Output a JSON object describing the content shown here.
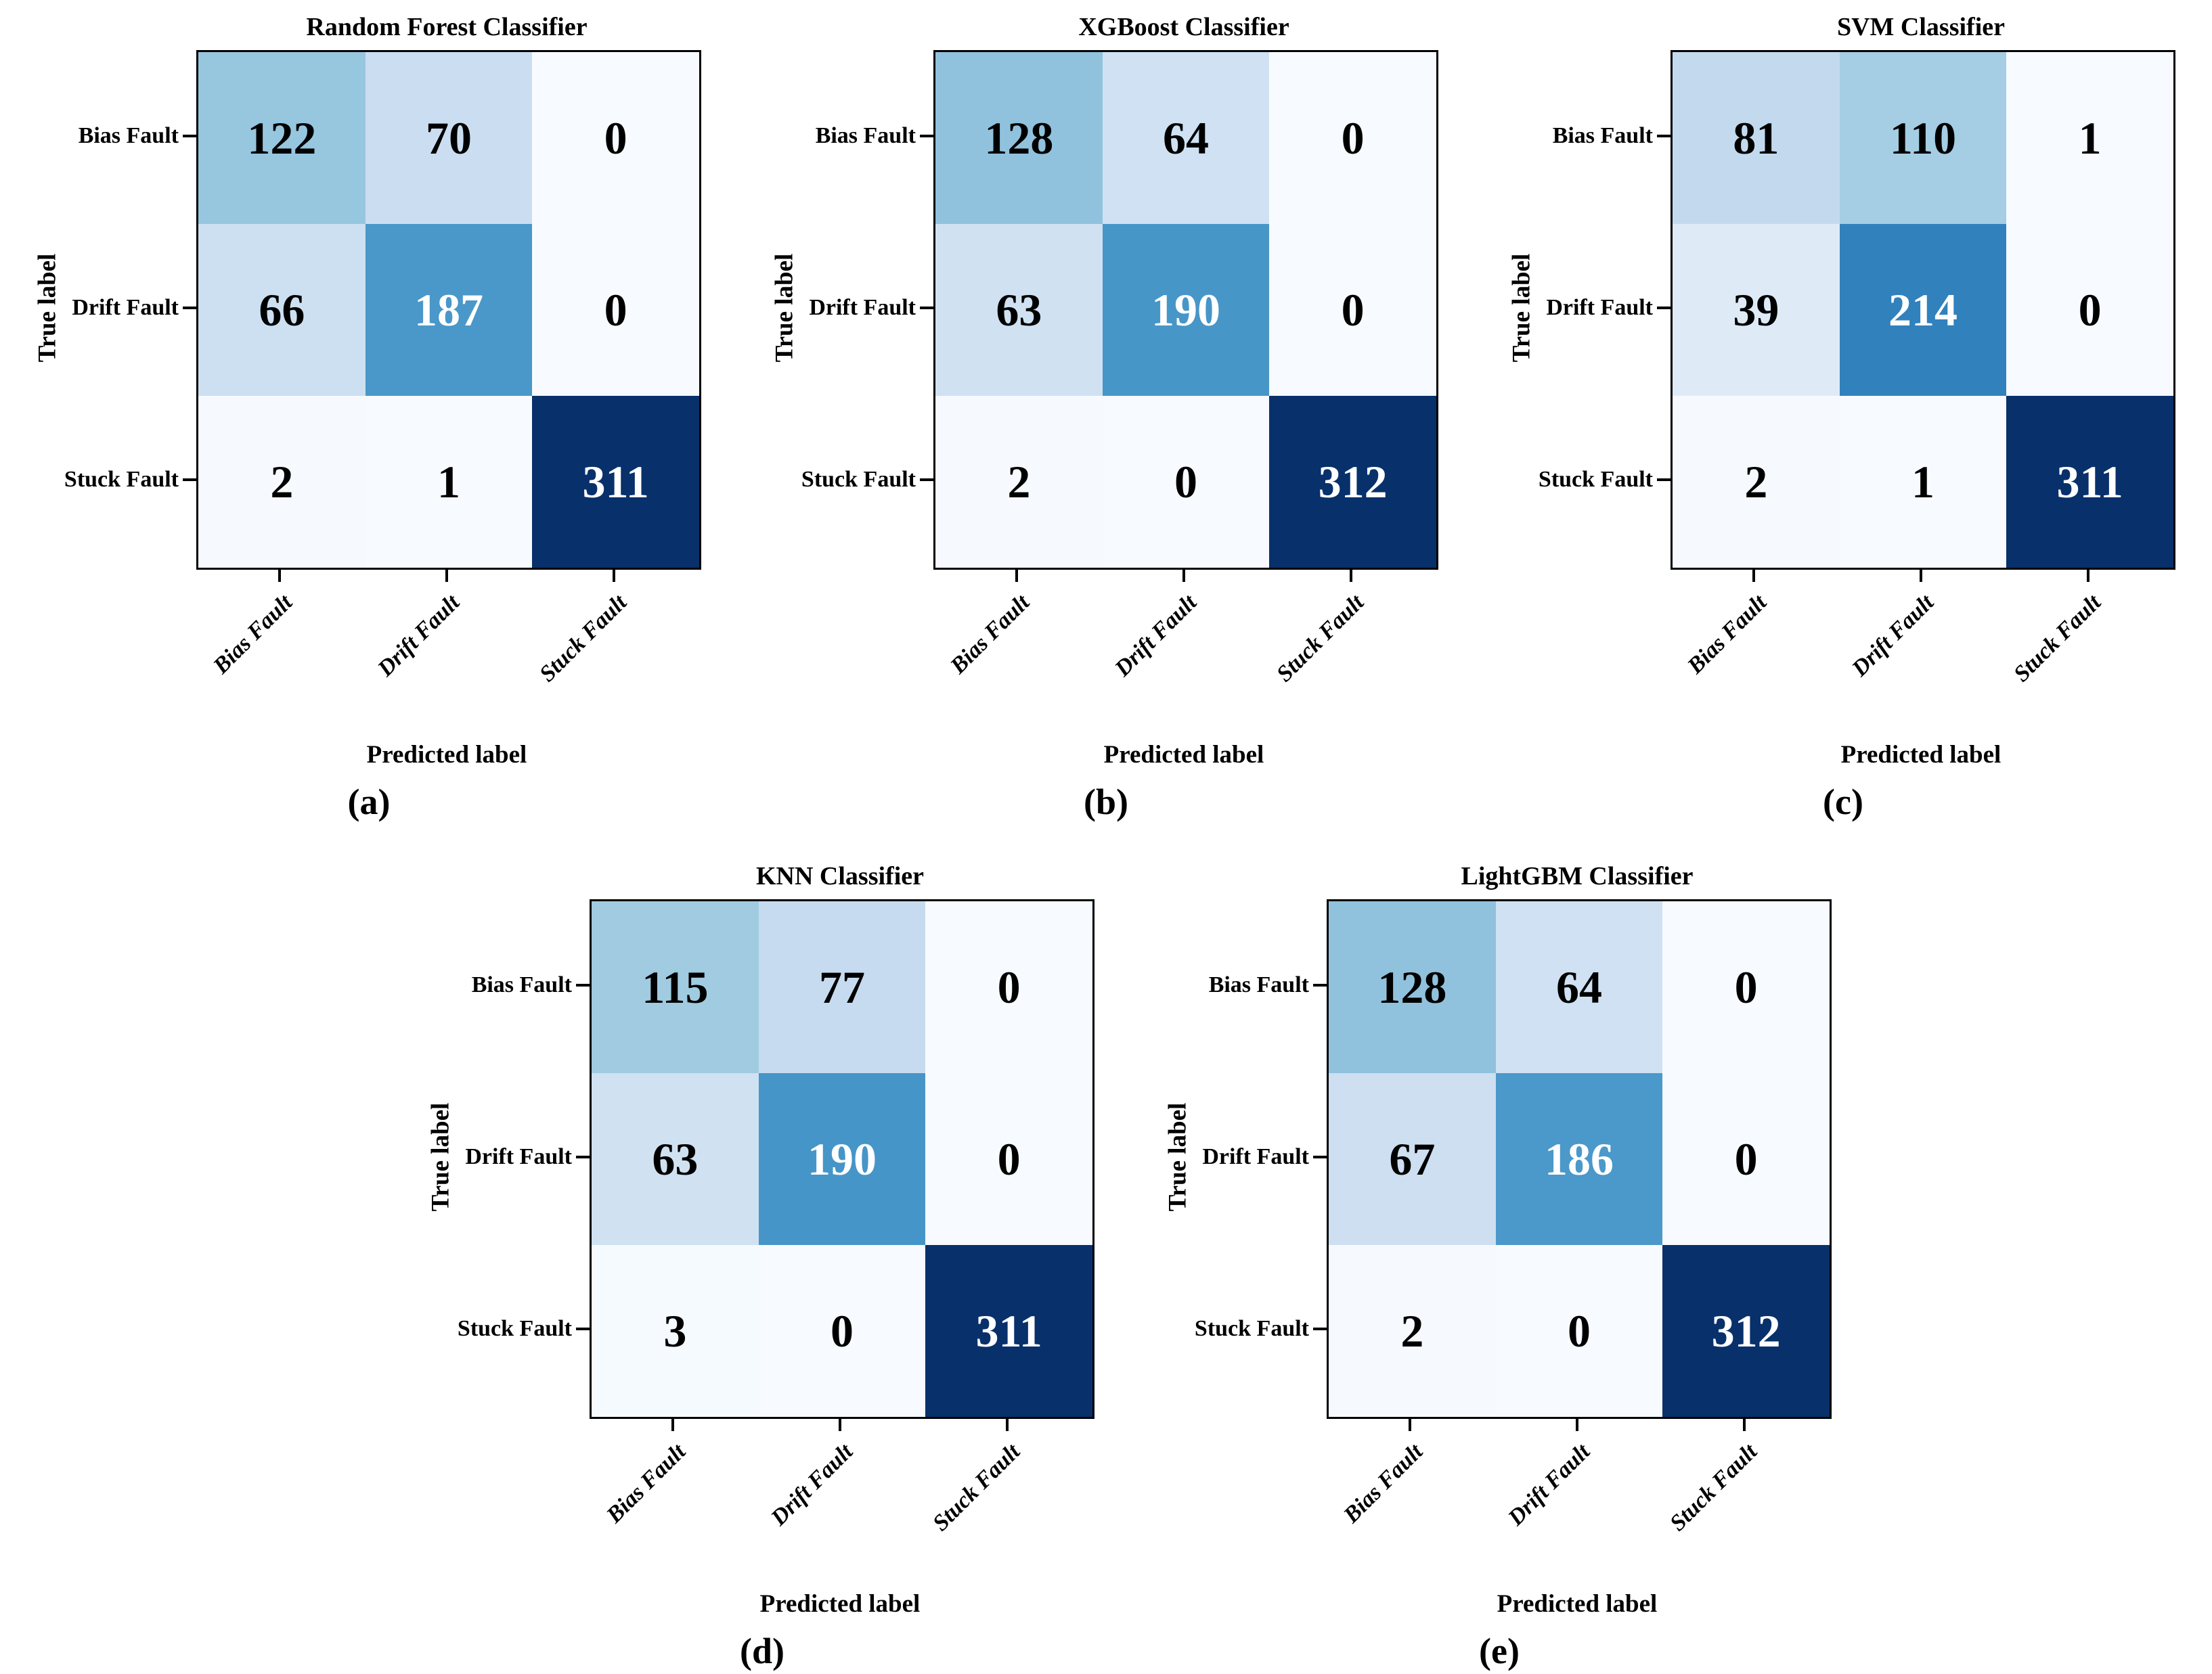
{
  "page": {
    "background": "#ffffff",
    "text_color": "#000000"
  },
  "chart_data": [
    {
      "type": "heatmap",
      "title": "Random Forest Classifier",
      "caption": "(a)",
      "xlabel": "Predicted label",
      "ylabel": "True label",
      "x_categories": [
        "Bias Fault",
        "Drift Fault",
        "Stuck Fault"
      ],
      "y_categories": [
        "Bias Fault",
        "Drift Fault",
        "Stuck Fault"
      ],
      "matrix": [
        [
          122,
          70,
          0
        ],
        [
          66,
          187,
          0
        ],
        [
          2,
          1,
          311
        ]
      ],
      "colormap": "Blues",
      "cell_colors": [
        [
          "#97c6df",
          "#cbdef1",
          "#f7fbff"
        ],
        [
          "#cde0f1",
          "#4a97c9",
          "#f7fbff"
        ],
        [
          "#f6faff",
          "#f7fbff",
          "#08306b"
        ]
      ],
      "cell_text_colors": [
        [
          "#000000",
          "#000000",
          "#000000"
        ],
        [
          "#000000",
          "#ffffff",
          "#000000"
        ],
        [
          "#000000",
          "#000000",
          "#ffffff"
        ]
      ]
    },
    {
      "type": "heatmap",
      "title": "XGBoost Classifier",
      "caption": "(b)",
      "xlabel": "Predicted label",
      "ylabel": "True label",
      "x_categories": [
        "Bias Fault",
        "Drift Fault",
        "Stuck Fault"
      ],
      "y_categories": [
        "Bias Fault",
        "Drift Fault",
        "Stuck Fault"
      ],
      "matrix": [
        [
          128,
          64,
          0
        ],
        [
          63,
          190,
          0
        ],
        [
          2,
          0,
          312
        ]
      ],
      "colormap": "Blues",
      "cell_colors": [
        [
          "#90c2de",
          "#cfe1f2",
          "#f7fbff"
        ],
        [
          "#d0e1f2",
          "#4796c8",
          "#f7fbff"
        ],
        [
          "#f6faff",
          "#f7fbff",
          "#08306b"
        ]
      ],
      "cell_text_colors": [
        [
          "#000000",
          "#000000",
          "#000000"
        ],
        [
          "#000000",
          "#ffffff",
          "#000000"
        ],
        [
          "#000000",
          "#000000",
          "#ffffff"
        ]
      ]
    },
    {
      "type": "heatmap",
      "title": "SVM Classifier",
      "caption": "(c)",
      "xlabel": "Predicted label",
      "ylabel": "True label",
      "x_categories": [
        "Bias Fault",
        "Drift Fault",
        "Stuck Fault"
      ],
      "y_categories": [
        "Bias Fault",
        "Drift Fault",
        "Stuck Fault"
      ],
      "matrix": [
        [
          81,
          110,
          1
        ],
        [
          39,
          214,
          0
        ],
        [
          2,
          1,
          311
        ]
      ],
      "colormap": "Blues",
      "cell_colors": [
        [
          "#c3daee",
          "#a5cde3",
          "#f7fbff"
        ],
        [
          "#deebf7",
          "#3181bd",
          "#f7fbff"
        ],
        [
          "#f6faff",
          "#f7fbff",
          "#08306b"
        ]
      ],
      "cell_text_colors": [
        [
          "#000000",
          "#000000",
          "#000000"
        ],
        [
          "#000000",
          "#ffffff",
          "#000000"
        ],
        [
          "#000000",
          "#000000",
          "#ffffff"
        ]
      ]
    },
    {
      "type": "heatmap",
      "title": "KNN Classifier",
      "caption": "(d)",
      "xlabel": "Predicted label",
      "ylabel": "True label",
      "x_categories": [
        "Bias Fault",
        "Drift Fault",
        "Stuck Fault"
      ],
      "y_categories": [
        "Bias Fault",
        "Drift Fault",
        "Stuck Fault"
      ],
      "matrix": [
        [
          115,
          77,
          0
        ],
        [
          63,
          190,
          0
        ],
        [
          3,
          0,
          311
        ]
      ],
      "colormap": "Blues",
      "cell_colors": [
        [
          "#a0cbe1",
          "#c6dbef",
          "#f7fbff"
        ],
        [
          "#d0e1f2",
          "#4695c8",
          "#f7fbff"
        ],
        [
          "#f5fafe",
          "#f7fbff",
          "#08306b"
        ]
      ],
      "cell_text_colors": [
        [
          "#000000",
          "#000000",
          "#000000"
        ],
        [
          "#000000",
          "#ffffff",
          "#000000"
        ],
        [
          "#000000",
          "#000000",
          "#ffffff"
        ]
      ]
    },
    {
      "type": "heatmap",
      "title": "LightGBM Classifier",
      "caption": "(e)",
      "xlabel": "Predicted label",
      "ylabel": "True label",
      "x_categories": [
        "Bias Fault",
        "Drift Fault",
        "Stuck Fault"
      ],
      "y_categories": [
        "Bias Fault",
        "Drift Fault",
        "Stuck Fault"
      ],
      "matrix": [
        [
          128,
          64,
          0
        ],
        [
          67,
          186,
          0
        ],
        [
          2,
          0,
          312
        ]
      ],
      "colormap": "Blues",
      "cell_colors": [
        [
          "#90c2de",
          "#cfe1f2",
          "#f7fbff"
        ],
        [
          "#cddff1",
          "#4b98ca",
          "#f7fbff"
        ],
        [
          "#f6faff",
          "#f7fbff",
          "#08306b"
        ]
      ],
      "cell_text_colors": [
        [
          "#000000",
          "#000000",
          "#000000"
        ],
        [
          "#000000",
          "#ffffff",
          "#000000"
        ],
        [
          "#000000",
          "#000000",
          "#ffffff"
        ]
      ]
    }
  ]
}
